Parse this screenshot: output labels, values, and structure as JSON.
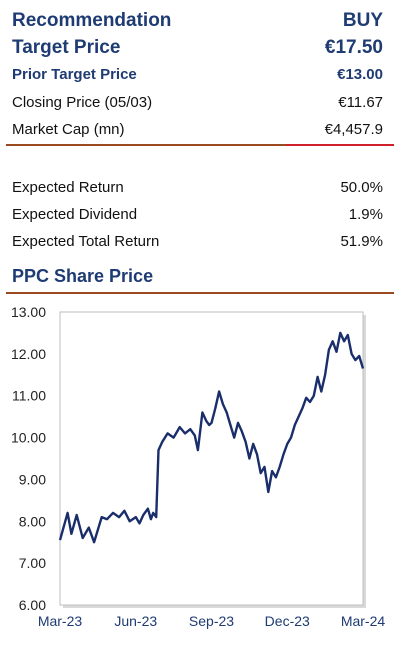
{
  "summary": {
    "recommendation": {
      "label": "Recommendation",
      "value": "BUY"
    },
    "target_price": {
      "label": "Target Price",
      "value": "€17.50"
    },
    "prior_target_price": {
      "label": "Prior Target Price",
      "value": "€13.00"
    },
    "closing_price": {
      "label": "Closing Price (05/03)",
      "value": "€11.67"
    },
    "market_cap": {
      "label": "Market Cap (mn)",
      "value": "€4,457.9"
    }
  },
  "returns": {
    "expected_return": {
      "label": "Expected Return",
      "value": "50.0%"
    },
    "expected_dividend": {
      "label": "Expected Dividend",
      "value": "1.9%"
    },
    "expected_total_return": {
      "label": "Expected Total Return",
      "value": "51.9%"
    }
  },
  "colors": {
    "navy": "#1f3b73",
    "line": "#1a2e6b",
    "divider_brown": "#9b4a1f",
    "divider_red": "#d0202a",
    "axis_gray": "#bfbfbf"
  },
  "chart_data": {
    "type": "line",
    "title": "PPC Share Price",
    "xlabel": "",
    "ylabel": "",
    "ylim": [
      6.0,
      13.0
    ],
    "yticks": [
      "13.00",
      "12.00",
      "11.00",
      "10.00",
      "9.00",
      "8.00",
      "7.00",
      "6.00"
    ],
    "xticks": [
      "Mar-23",
      "Jun-23",
      "Sep-23",
      "Dec-23",
      "Mar-24"
    ],
    "grid": false,
    "legend": "none",
    "series": [
      {
        "x": [
          0.0,
          0.1,
          0.15,
          0.22,
          0.3,
          0.38,
          0.45,
          0.55,
          0.62,
          0.7,
          0.78,
          0.85,
          0.92,
          1.0,
          1.05,
          1.1,
          1.16,
          1.2,
          1.23,
          1.27,
          1.3,
          1.35,
          1.42,
          1.5,
          1.58,
          1.65,
          1.72,
          1.78,
          1.82,
          1.88,
          1.93,
          1.97,
          2.0,
          2.05,
          2.1,
          2.15,
          2.2,
          2.25,
          2.3,
          2.35,
          2.4,
          2.45,
          2.5,
          2.55,
          2.6,
          2.65,
          2.7,
          2.75,
          2.8,
          2.85,
          2.9,
          2.95,
          3.0,
          3.05,
          3.1,
          3.15,
          3.2,
          3.25,
          3.3,
          3.35,
          3.4,
          3.45,
          3.5,
          3.55,
          3.6,
          3.65,
          3.7,
          3.75,
          3.8,
          3.85,
          3.9,
          3.95,
          4.0
        ],
        "y": [
          7.55,
          8.2,
          7.7,
          8.15,
          7.6,
          7.85,
          7.5,
          8.1,
          8.05,
          8.2,
          8.1,
          8.25,
          8.0,
          8.1,
          7.95,
          8.15,
          8.3,
          8.05,
          8.2,
          8.1,
          9.7,
          9.9,
          10.1,
          10.0,
          10.25,
          10.1,
          10.2,
          10.05,
          9.7,
          10.6,
          10.4,
          10.3,
          10.35,
          10.7,
          11.1,
          10.8,
          10.6,
          10.3,
          10.0,
          10.35,
          10.15,
          9.9,
          9.5,
          9.85,
          9.6,
          9.15,
          9.3,
          8.7,
          9.2,
          9.05,
          9.3,
          9.6,
          9.85,
          10.0,
          10.3,
          10.5,
          10.7,
          10.95,
          10.85,
          11.0,
          11.45,
          11.1,
          11.5,
          12.1,
          12.3,
          12.05,
          12.5,
          12.3,
          12.45,
          12.0,
          11.85,
          11.95,
          11.65
        ]
      }
    ]
  }
}
